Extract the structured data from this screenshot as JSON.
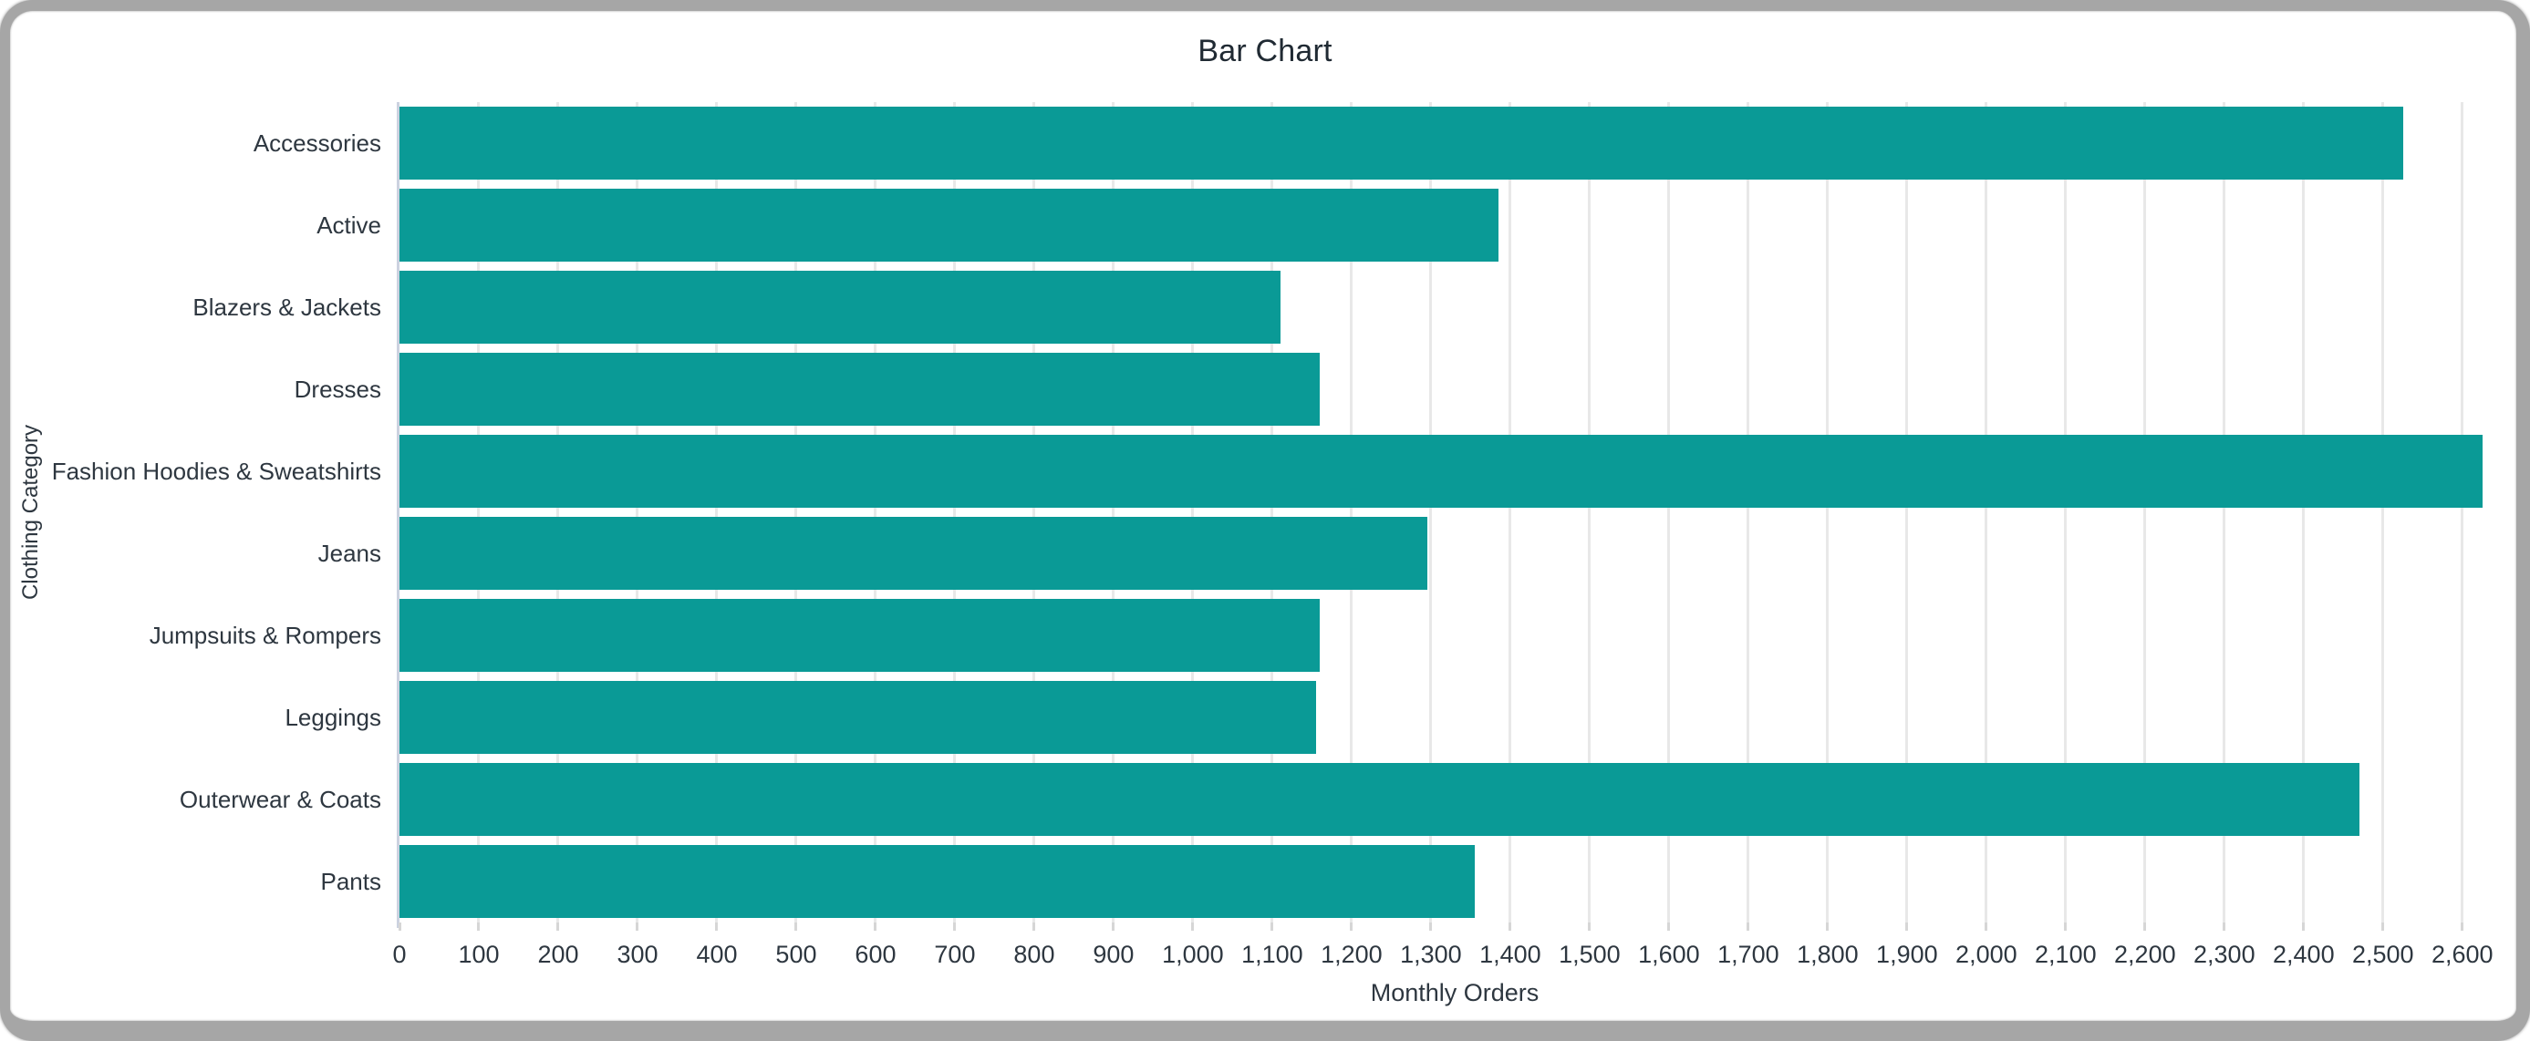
{
  "window": {
    "frame_color": "#a6a6a6",
    "background": "#ffffff"
  },
  "chart_data": {
    "type": "bar",
    "orientation": "horizontal",
    "title": "Bar Chart",
    "xlabel": "Monthly Orders",
    "ylabel": "Clothing Category",
    "categories": [
      "Accessories",
      "Active",
      "Blazers & Jackets",
      "Dresses",
      "Fashion Hoodies & Sweatshirts",
      "Jeans",
      "Jumpsuits & Rompers",
      "Leggings",
      "Outerwear & Coats",
      "Pants"
    ],
    "values": [
      2525,
      1385,
      1110,
      1160,
      2625,
      1295,
      1160,
      1155,
      2470,
      1355
    ],
    "bar_color": "#0a9a96",
    "xlim": [
      0,
      2660
    ],
    "xticks": [
      0,
      100,
      200,
      300,
      400,
      500,
      600,
      700,
      800,
      900,
      1000,
      1100,
      1200,
      1300,
      1400,
      1500,
      1600,
      1700,
      1800,
      1900,
      2000,
      2100,
      2200,
      2300,
      2400,
      2500,
      2600
    ],
    "xtick_labels": [
      "0",
      "100",
      "200",
      "300",
      "400",
      "500",
      "600",
      "700",
      "800",
      "900",
      "1,000",
      "1,100",
      "1,200",
      "1,300",
      "1,400",
      "1,500",
      "1,600",
      "1,700",
      "1,800",
      "1,900",
      "2,000",
      "2,100",
      "2,200",
      "2,300",
      "2,400",
      "2,500",
      "2,600"
    ],
    "grid": "vertical",
    "legend": "none"
  }
}
